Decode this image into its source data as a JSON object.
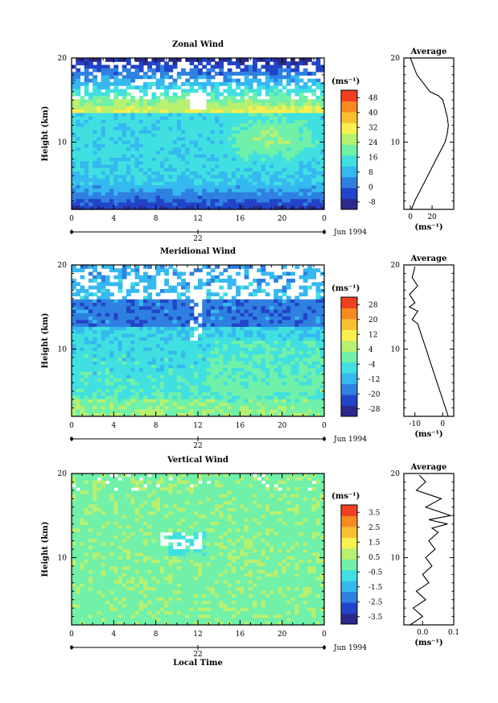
{
  "chart_data": [
    {
      "type": "heatmap",
      "title": "Zonal Wind",
      "ylabel": "Height (km)",
      "ylim": [
        2,
        20
      ],
      "y_ticks": [
        "20",
        "10"
      ],
      "x_ticks": [
        "0",
        "4",
        "8",
        "12",
        "16",
        "20",
        "0"
      ],
      "xlim": [
        0,
        24
      ],
      "date_center": "22",
      "date_label": "Jun 1994",
      "units_label": "(ms⁻¹)",
      "colorbar_ticks": [
        "48",
        "40",
        "32",
        "24",
        "16",
        "8",
        "0",
        "-8"
      ],
      "colorbar_range": [
        -12,
        52
      ],
      "colors": [
        "#2a2a8c",
        "#2244c8",
        "#2f80e0",
        "#36b8f0",
        "#40e0e0",
        "#70f0a8",
        "#b8f070",
        "#f8f050",
        "#f8c030",
        "#f88a20",
        "#f04020"
      ],
      "profile": {
        "title": "Average",
        "x_ticks": [
          "0",
          "20"
        ],
        "xlabel": "(ms⁻¹)",
        "y_ticks": [
          "20",
          "10"
        ],
        "xlim": [
          -6,
          40
        ],
        "x": [
          1,
          4,
          8,
          12,
          16,
          20,
          24,
          28,
          32,
          34,
          35,
          34,
          32,
          30,
          26,
          18,
          12,
          6,
          3,
          0
        ],
        "y": [
          2,
          3,
          4,
          5,
          6,
          7,
          8,
          9,
          10,
          11,
          12,
          13,
          14,
          15,
          15.5,
          16,
          17,
          18,
          19,
          20
        ]
      }
    },
    {
      "type": "heatmap",
      "title": "Meridional Wind",
      "ylabel": "Height (km)",
      "ylim": [
        2,
        20
      ],
      "y_ticks": [
        "20",
        "10"
      ],
      "x_ticks": [
        "0",
        "4",
        "8",
        "12",
        "16",
        "20",
        "0"
      ],
      "xlim": [
        0,
        24
      ],
      "date_center": "22",
      "date_label": "Jun 1994",
      "units_label": "(ms⁻¹)",
      "colorbar_ticks": [
        "28",
        "20",
        "12",
        "4",
        "-4",
        "-12",
        "-20",
        "-28"
      ],
      "colorbar_range": [
        -32,
        32
      ],
      "colors": [
        "#2a2a8c",
        "#2244c8",
        "#2f80e0",
        "#36b8f0",
        "#40e0e0",
        "#70f0a8",
        "#b8f070",
        "#f8f050",
        "#f8c030",
        "#f88a20",
        "#f04020"
      ],
      "profile": {
        "title": "Average",
        "x_ticks": [
          "-10",
          "0"
        ],
        "xlabel": "(ms⁻¹)",
        "y_ticks": [
          "20",
          "10"
        ],
        "xlim": [
          -14,
          4
        ],
        "x": [
          2,
          1,
          0,
          -1,
          -2,
          -3,
          -4,
          -5,
          -6,
          -7,
          -8,
          -9,
          -11,
          -9,
          -12,
          -10,
          -12,
          -9,
          -11,
          -10
        ],
        "y": [
          2,
          3,
          4,
          5,
          6,
          7,
          8,
          9,
          10,
          11,
          12,
          13,
          13.5,
          14.5,
          15,
          15.5,
          16.5,
          17.5,
          18.5,
          19.8
        ]
      }
    },
    {
      "type": "heatmap",
      "title": "Vertical Wind",
      "ylabel": "Height (km)",
      "ylim": [
        2,
        20
      ],
      "y_ticks": [
        "20",
        "10"
      ],
      "x_ticks": [
        "0",
        "4",
        "8",
        "12",
        "16",
        "20",
        "0"
      ],
      "xlim": [
        0,
        24
      ],
      "date_center": "22",
      "date_label": "Jun 1994",
      "xlabel": "Local Time",
      "units_label": "(ms⁻¹)",
      "colorbar_ticks": [
        "3.5",
        "2.5",
        "1.5",
        "0.5",
        "-0.5",
        "-1.5",
        "-2.5",
        "-3.5"
      ],
      "colorbar_range": [
        -4,
        4
      ],
      "colors": [
        "#2a2a8c",
        "#2244c8",
        "#2f80e0",
        "#36b8f0",
        "#40e0e0",
        "#70f0a8",
        "#b8f070",
        "#f8f050",
        "#f8c030",
        "#f88a20",
        "#f04020"
      ],
      "profile": {
        "title": "Average",
        "x_ticks": [
          "0.0",
          "0.1"
        ],
        "xlabel": "(ms⁻¹)",
        "y_ticks": [
          "20",
          "10"
        ],
        "xlim": [
          -0.06,
          0.1
        ],
        "x": [
          -0.04,
          0.0,
          -0.03,
          0.01,
          -0.02,
          0.02,
          0.0,
          0.03,
          0.01,
          0.04,
          0.02,
          0.05,
          0.03,
          0.08,
          0.02,
          0.09,
          0.01,
          0.06,
          -0.02,
          0.01,
          -0.01
        ],
        "y": [
          2,
          3,
          4,
          5,
          6,
          7,
          8,
          9,
          10,
          11,
          12,
          13,
          13.5,
          14,
          14.5,
          15,
          16,
          17,
          18,
          19,
          19.8
        ]
      }
    }
  ]
}
